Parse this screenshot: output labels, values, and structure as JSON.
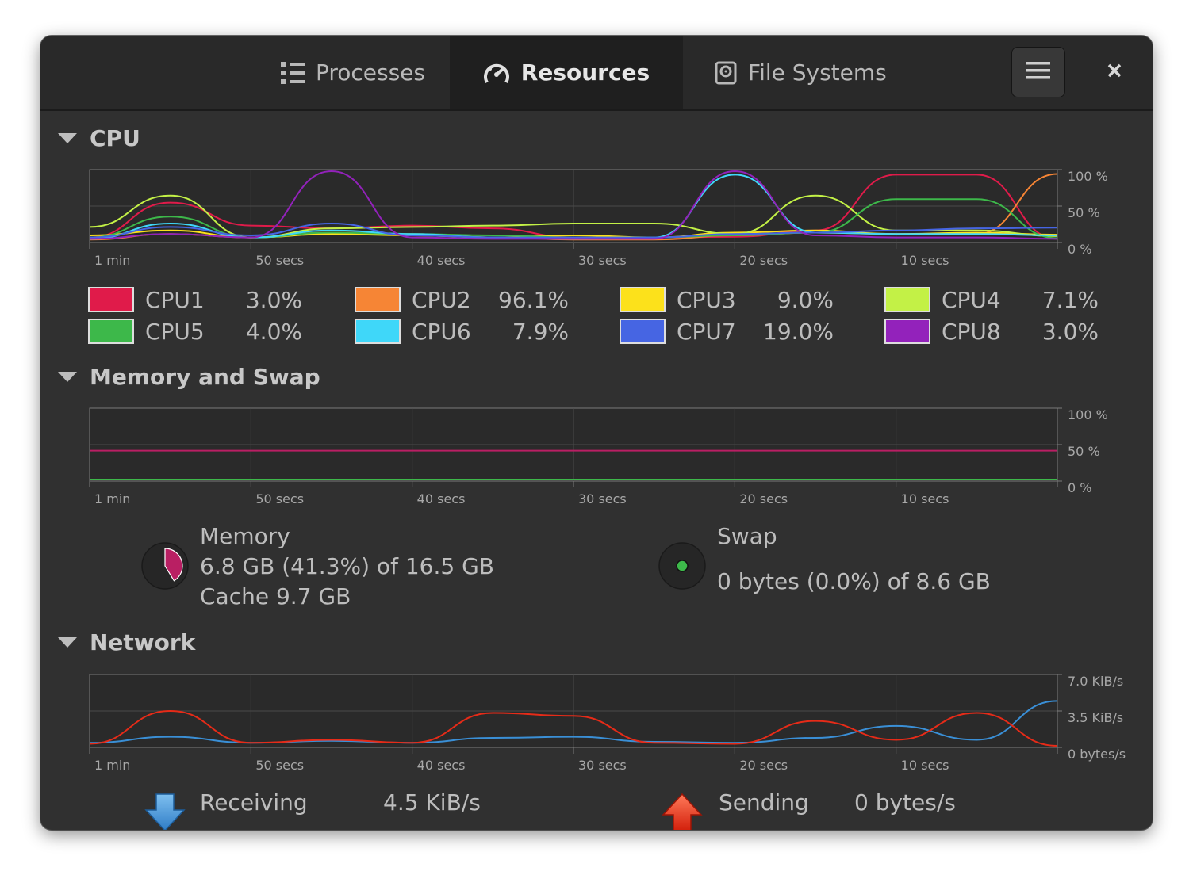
{
  "tabs": [
    {
      "label": "Processes",
      "icon": "list-icon",
      "active": false
    },
    {
      "label": "Resources",
      "icon": "speedometer-icon",
      "active": true
    },
    {
      "label": "File Systems",
      "icon": "disk-icon",
      "active": false
    }
  ],
  "header": {
    "menu_icon": "hamburger-menu-icon",
    "close_icon": "close-icon"
  },
  "cpu": {
    "title": "CPU",
    "y_ticks": [
      "100 %",
      "50 %",
      "0 %"
    ],
    "x_ticks": [
      "1 min",
      "50 secs",
      "40 secs",
      "30 secs",
      "20 secs",
      "10 secs"
    ],
    "legend": [
      {
        "name": "CPU1",
        "value": "3.0%",
        "color": "#e01b4a"
      },
      {
        "name": "CPU2",
        "value": "96.1%",
        "color": "#f68535"
      },
      {
        "name": "CPU3",
        "value": "9.0%",
        "color": "#fce11b"
      },
      {
        "name": "CPU4",
        "value": "7.1%",
        "color": "#c3f146"
      },
      {
        "name": "CPU5",
        "value": "4.0%",
        "color": "#3db84a"
      },
      {
        "name": "CPU6",
        "value": "7.9%",
        "color": "#3fd7f9"
      },
      {
        "name": "CPU7",
        "value": "19.0%",
        "color": "#4665e3"
      },
      {
        "name": "CPU8",
        "value": "3.0%",
        "color": "#9322bb"
      }
    ]
  },
  "memory": {
    "title": "Memory and Swap",
    "y_ticks": [
      "100 %",
      "50 %",
      "0 %"
    ],
    "x_ticks": [
      "1 min",
      "50 secs",
      "40 secs",
      "30 secs",
      "20 secs",
      "10 secs"
    ],
    "memory_label": "Memory",
    "memory_usage": "6.8 GB (41.3%) of 16.5 GB",
    "memory_cache": "Cache 9.7 GB",
    "memory_fraction": 0.413,
    "memory_color": "#b91f63",
    "swap_label": "Swap",
    "swap_usage": "0 bytes (0.0%) of 8.6 GB",
    "swap_fraction": 0.0,
    "swap_color": "#3db84a"
  },
  "network": {
    "title": "Network",
    "y_ticks": [
      "7.0 KiB/s",
      "3.5 KiB/s",
      "0 bytes/s"
    ],
    "x_ticks": [
      "1 min",
      "50 secs",
      "40 secs",
      "30 secs",
      "20 secs",
      "10 secs"
    ],
    "receiving_label": "Receiving",
    "receiving_value": "4.5 KiB/s",
    "sending_label": "Sending",
    "sending_value": "0 bytes/s",
    "receiving_color": "#3a8fd6",
    "sending_color": "#e62b18"
  },
  "chart_data": [
    {
      "type": "line",
      "title": "CPU",
      "ylim": [
        0,
        100
      ],
      "x": [
        -60,
        -55,
        -50,
        -45,
        -40,
        -35,
        -30,
        -25,
        -20,
        -15,
        -10,
        -5,
        0
      ],
      "series": [
        {
          "name": "CPU1",
          "values": [
            5,
            55,
            22,
            18,
            22,
            18,
            5,
            5,
            6,
            15,
            95,
            95,
            3
          ]
        },
        {
          "name": "CPU2",
          "values": [
            2,
            10,
            5,
            12,
            10,
            5,
            2,
            2,
            8,
            12,
            10,
            10,
            96
          ]
        },
        {
          "name": "CPU3",
          "values": [
            8,
            15,
            5,
            10,
            8,
            5,
            8,
            5,
            12,
            15,
            10,
            12,
            9
          ]
        },
        {
          "name": "CPU4",
          "values": [
            20,
            65,
            5,
            18,
            20,
            22,
            25,
            25,
            10,
            65,
            15,
            15,
            7
          ]
        },
        {
          "name": "CPU5",
          "values": [
            5,
            35,
            5,
            12,
            10,
            8,
            5,
            5,
            8,
            12,
            60,
            60,
            4
          ]
        },
        {
          "name": "CPU6",
          "values": [
            3,
            25,
            5,
            15,
            10,
            5,
            3,
            5,
            95,
            12,
            10,
            10,
            8
          ]
        },
        {
          "name": "CPU7",
          "values": [
            5,
            20,
            8,
            25,
            8,
            5,
            5,
            5,
            10,
            12,
            15,
            18,
            19
          ]
        },
        {
          "name": "CPU8",
          "values": [
            3,
            10,
            5,
            100,
            5,
            3,
            3,
            3,
            100,
            8,
            5,
            5,
            3
          ]
        }
      ]
    },
    {
      "type": "line",
      "title": "Memory and Swap",
      "ylim": [
        0,
        100
      ],
      "x": [
        -60,
        0
      ],
      "series": [
        {
          "name": "Memory",
          "values": [
            41.3,
            41.3
          ]
        },
        {
          "name": "Swap",
          "values": [
            0,
            0
          ]
        }
      ]
    },
    {
      "type": "line",
      "title": "Network",
      "ylim": [
        0,
        7.0
      ],
      "x": [
        -60,
        -55,
        -50,
        -45,
        -40,
        -35,
        -30,
        -25,
        -20,
        -15,
        -10,
        -5,
        0
      ],
      "series": [
        {
          "name": "Receiving",
          "values": [
            0.3,
            0.9,
            0.3,
            0.5,
            0.3,
            0.8,
            0.9,
            0.4,
            0.3,
            0.8,
            2.0,
            0.6,
            4.5
          ]
        },
        {
          "name": "Sending",
          "values": [
            0.2,
            3.5,
            0.3,
            0.6,
            0.3,
            3.3,
            3.0,
            0.3,
            0.2,
            2.5,
            0.6,
            3.3,
            0
          ]
        }
      ]
    }
  ]
}
